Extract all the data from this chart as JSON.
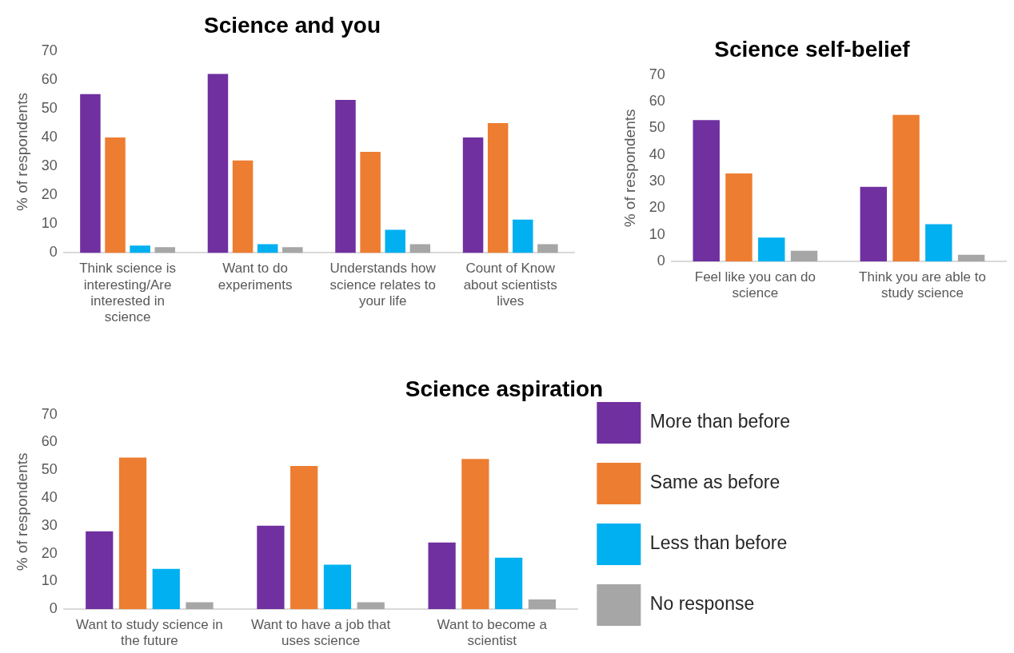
{
  "chart_data": [
    {
      "type": "bar",
      "title": "Science and you",
      "ylabel": "% of respondents",
      "categories": [
        "Think science is interesting/Are interested in science",
        "Want to do experiments",
        "Understands how science relates to your life",
        "Count of Know about scientists lives"
      ],
      "series": [
        {
          "color": "#7030a0",
          "values": [
            55,
            62,
            53,
            40
          ]
        },
        {
          "color": "#ed7d31",
          "values": [
            40,
            32,
            35,
            45
          ]
        },
        {
          "color": "#00b0f0",
          "values": [
            2.5,
            3,
            8,
            11.5
          ]
        },
        {
          "color": "#a6a6a6",
          "values": [
            2,
            2,
            3,
            3
          ]
        }
      ],
      "ylim": [
        0,
        70
      ],
      "yticks": [
        0,
        10,
        20,
        30,
        40,
        50,
        60,
        70
      ],
      "grid": false,
      "legend": false
    },
    {
      "type": "bar",
      "title": "Science self-belief",
      "ylabel": "% of respondents",
      "categories": [
        "Feel like you can do science",
        "Think you are able to study science"
      ],
      "series": [
        {
          "color": "#7030a0",
          "values": [
            53,
            28
          ]
        },
        {
          "color": "#ed7d31",
          "values": [
            33,
            55
          ]
        },
        {
          "color": "#00b0f0",
          "values": [
            9,
            14
          ]
        },
        {
          "color": "#a6a6a6",
          "values": [
            4,
            2.5
          ]
        }
      ],
      "ylim": [
        0,
        70
      ],
      "yticks": [
        0,
        10,
        20,
        30,
        40,
        50,
        60,
        70
      ],
      "grid": false,
      "legend": false
    },
    {
      "type": "bar",
      "title": "Science aspiration",
      "ylabel": "% of respondents",
      "categories": [
        "Want to study science in the future",
        "Want to have a job that uses science",
        "Want to become a scientist"
      ],
      "series": [
        {
          "name": "More than before",
          "color": "#7030a0",
          "values": [
            28,
            30,
            24
          ]
        },
        {
          "name": "Same as before",
          "color": "#ed7d31",
          "values": [
            54.5,
            51.5,
            54
          ]
        },
        {
          "name": "Less than before",
          "color": "#00b0f0",
          "values": [
            14.5,
            16,
            18.5
          ]
        },
        {
          "name": "No response",
          "color": "#a6a6a6",
          "values": [
            2.5,
            2.5,
            3.5
          ]
        }
      ],
      "ylim": [
        0,
        70
      ],
      "yticks": [
        0,
        10,
        20,
        30,
        40,
        50,
        60,
        70
      ],
      "grid": false,
      "legend": "right"
    }
  ]
}
